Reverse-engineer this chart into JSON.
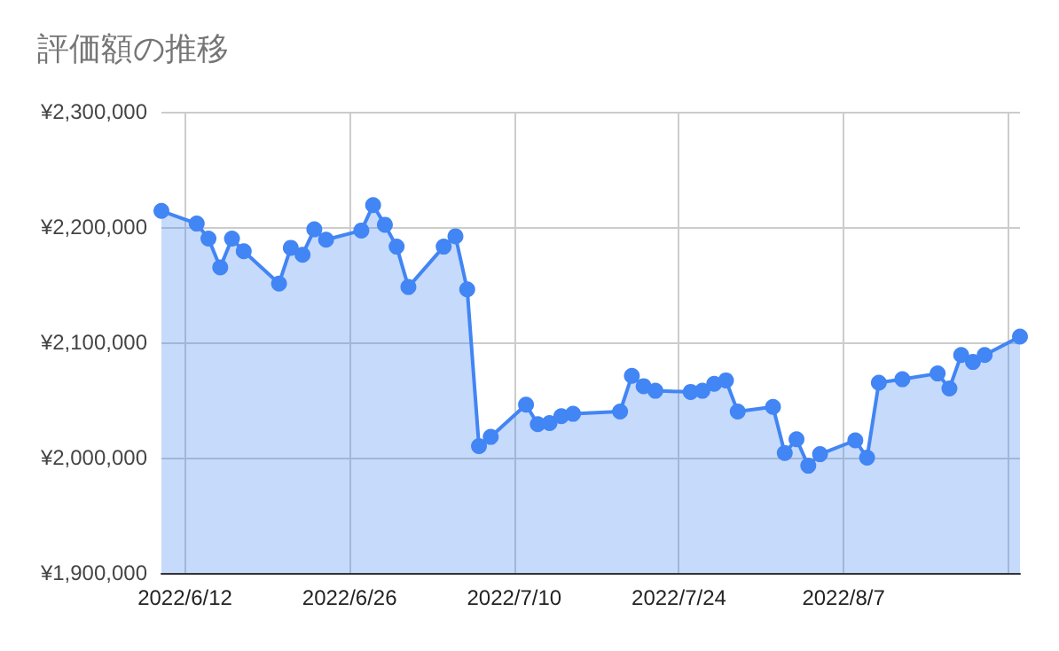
{
  "chart_data": {
    "type": "area",
    "title": "評価額の推移",
    "x": [
      "2022-06-10",
      "2022-06-13",
      "2022-06-14",
      "2022-06-15",
      "2022-06-16",
      "2022-06-17",
      "2022-06-20",
      "2022-06-21",
      "2022-06-22",
      "2022-06-23",
      "2022-06-24",
      "2022-06-27",
      "2022-06-28",
      "2022-06-29",
      "2022-06-30",
      "2022-07-01",
      "2022-07-04",
      "2022-07-05",
      "2022-07-06",
      "2022-07-07",
      "2022-07-08",
      "2022-07-11",
      "2022-07-12",
      "2022-07-13",
      "2022-07-14",
      "2022-07-15",
      "2022-07-19",
      "2022-07-20",
      "2022-07-21",
      "2022-07-22",
      "2022-07-25",
      "2022-07-26",
      "2022-07-27",
      "2022-07-28",
      "2022-07-29",
      "2022-08-01",
      "2022-08-02",
      "2022-08-03",
      "2022-08-04",
      "2022-08-05",
      "2022-08-08",
      "2022-08-09",
      "2022-08-10",
      "2022-08-12",
      "2022-08-15",
      "2022-08-16",
      "2022-08-17",
      "2022-08-18",
      "2022-08-19",
      "2022-08-22"
    ],
    "series": [
      {
        "color": "#4285f4",
        "values": [
          2214000,
          2203000,
          2190000,
          2165000,
          2190000,
          2179000,
          2151000,
          2182000,
          2176000,
          2198000,
          2189000,
          2197000,
          2219000,
          2202000,
          2183000,
          2148000,
          2183000,
          2192000,
          2146000,
          2010000,
          2018000,
          2046000,
          2029000,
          2030000,
          2036000,
          2038000,
          2040000,
          2071000,
          2062000,
          2058000,
          2057000,
          2058000,
          2064000,
          2067000,
          2040000,
          2044000,
          2004000,
          2016000,
          1993000,
          2003000,
          2015000,
          2000000,
          2065000,
          2068000,
          2073000,
          2060000,
          2089000,
          2083000,
          2089000,
          2105000
        ]
      }
    ],
    "xlim": [
      "2022-06-10",
      "2022-08-22"
    ],
    "xticks": [
      {
        "value": "2022-06-12",
        "label": "2022/6/12"
      },
      {
        "value": "2022-06-26",
        "label": "2022/6/26"
      },
      {
        "value": "2022-07-10",
        "label": "2022/7/10"
      },
      {
        "value": "2022-07-24",
        "label": "2022/7/24"
      },
      {
        "value": "2022-08-07",
        "label": "2022/8/7"
      },
      {
        "value": "2022-08-21",
        "label": null
      }
    ],
    "ylim": [
      1900000,
      2300000
    ],
    "yticks": [
      {
        "value": 1900000,
        "label": "¥1,900,000"
      },
      {
        "value": 2000000,
        "label": "¥2,000,000"
      },
      {
        "value": 2100000,
        "label": "¥2,100,000"
      },
      {
        "value": 2200000,
        "label": "¥2,200,000"
      },
      {
        "value": 2300000,
        "label": "¥2,300,000"
      }
    ],
    "grid": true,
    "marker": "circle",
    "line_style": "solid"
  }
}
